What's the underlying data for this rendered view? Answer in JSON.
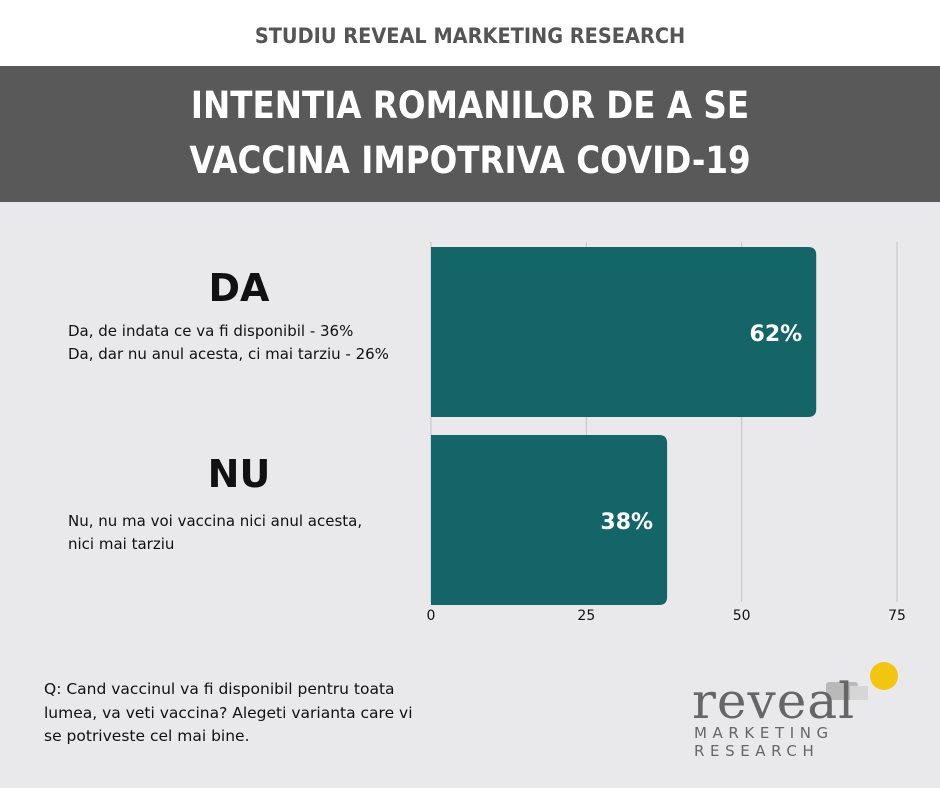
{
  "header": {
    "study": "STUDIU REVEAL MARKETING RESEARCH",
    "title_line1": "INTENTIA ROMANILOR DE A SE",
    "title_line2": "VACCINA IMPOTRIVA COVID-19"
  },
  "colors": {
    "bar": "#136568",
    "title_band": "#595959",
    "background": "#e9e9eb",
    "logo_accent": "#f2c510"
  },
  "categories_detail": [
    {
      "label": "DA",
      "lines": [
        "Da, de indata ce va fi disponibil - 36%",
        "Da, dar nu anul acesta, ci mai tarziu - 26%"
      ]
    },
    {
      "label": "NU",
      "lines": [
        "Nu, nu ma voi vaccina nici anul acesta,",
        "nici mai tarziu"
      ]
    }
  ],
  "chart_data": {
    "type": "bar",
    "orientation": "horizontal",
    "categories": [
      "DA",
      "NU"
    ],
    "values": [
      62,
      38
    ],
    "data_labels": [
      "62%",
      "38%"
    ],
    "xlim": [
      0,
      75
    ],
    "xticks": [
      0,
      25,
      50,
      75
    ],
    "grid": true
  },
  "question": {
    "line1": "Q: Cand vaccinul va fi disponibil pentru toata",
    "line2": "lumea, va veti vaccina? Alegeti varianta care vi",
    "line3": "se potriveste cel mai bine."
  },
  "logo": {
    "word": "reveal",
    "line1": "MARKETING",
    "line2": "RESEARCH"
  }
}
